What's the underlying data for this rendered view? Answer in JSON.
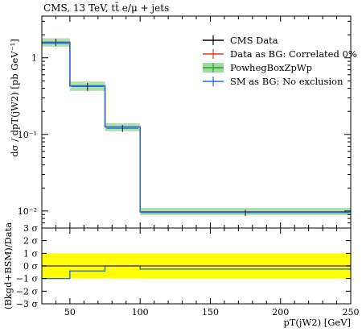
{
  "chart_data": [
    {
      "type": "line",
      "title": "CMS, 13 TeV, tt̄ e/μ + jets",
      "ylabel": "dσ / dpT(jW2) [pb GeV⁻¹]",
      "xlabel": "",
      "y_scale": "log",
      "ylim": [
        0.006,
        3.5
      ],
      "xlim": [
        30,
        250
      ],
      "yticks": [
        "10⁻²",
        "10⁻¹",
        "1"
      ],
      "legend_position": "top-right",
      "bins": [
        [
          30,
          50
        ],
        [
          50,
          75
        ],
        [
          75,
          100
        ],
        [
          100,
          250
        ]
      ],
      "series": [
        {
          "name": "CMS Data",
          "color": "#000000",
          "values": [
            1.6,
            0.42,
            0.12,
            0.0095
          ],
          "errors": [
            0.18,
            0.05,
            0.012,
            0.0009
          ],
          "x_points": [
            40,
            62.5,
            87.5,
            175
          ]
        },
        {
          "name": "Data as BG: Correlated 0%",
          "color": "#e8372c",
          "values": [
            1.6,
            0.43,
            0.125,
            0.0098
          ]
        },
        {
          "name": "PowhegBoxZpWp",
          "color": "#2ca02c",
          "band_color": "#9ddc9d",
          "values": [
            1.6,
            0.43,
            0.125,
            0.0098
          ],
          "band": [
            [
              1.4,
              1.8
            ],
            [
              0.37,
              0.49
            ],
            [
              0.11,
              0.14
            ],
            [
              0.0088,
              0.011
            ]
          ]
        },
        {
          "name": "SM as BG: No exclusion",
          "color": "#1f6fe0",
          "values": [
            1.55,
            0.43,
            0.125,
            0.0097
          ]
        }
      ]
    },
    {
      "type": "line",
      "ylabel": "(Bkgd+BSM)/Data",
      "xlabel": "pT(jW2) [GeV]",
      "xlim": [
        30,
        250
      ],
      "ylim": [
        -3,
        3
      ],
      "yticks": [
        "3 σ",
        "2 σ",
        "1 σ",
        "0 σ",
        "−1 σ",
        "−2 σ",
        "−3 σ"
      ],
      "xticks": [
        "50",
        "100",
        "150",
        "200",
        "250"
      ],
      "band": {
        "range": [
          -1,
          1
        ],
        "color": "#ffff00"
      },
      "series": [
        {
          "name": "SM as BG: No exclusion",
          "color": "#1f6fe0",
          "values": [
            -1.0,
            -0.4,
            0.0,
            -0.25
          ]
        },
        {
          "name": "Data as BG: Correlated 0%",
          "color": "#e8372c",
          "values": [
            0.0,
            0.0,
            0.0,
            0.0
          ]
        }
      ]
    }
  ]
}
